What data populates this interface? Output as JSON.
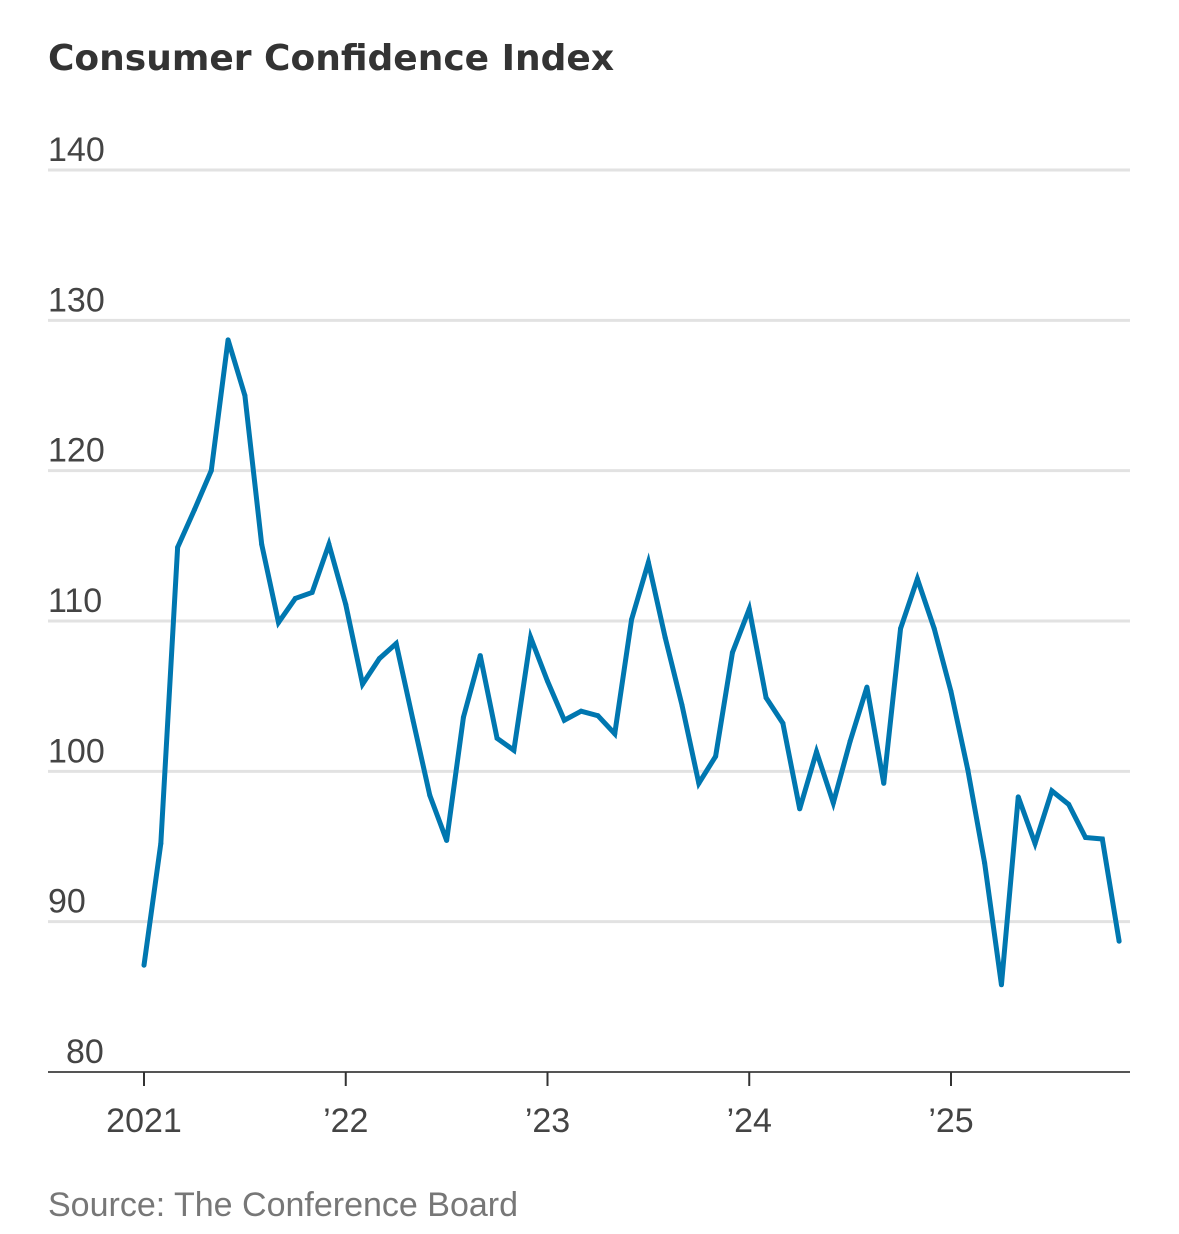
{
  "chart_data": {
    "type": "line",
    "title": "Consumer Confidence Index",
    "source": "Source: The Conference Board",
    "xlabel": "",
    "ylabel": "",
    "ylim": [
      80,
      140
    ],
    "yticks": [
      80,
      90,
      100,
      110,
      120,
      130,
      140
    ],
    "ytick_labels": [
      "80",
      "90",
      "100",
      "110",
      "120",
      "130",
      "140"
    ],
    "xticks": [
      {
        "label": "2021",
        "year": 2021
      },
      {
        "label": "’22",
        "year": 2022
      },
      {
        "label": "’23",
        "year": 2023
      },
      {
        "label": "’24",
        "year": 2024
      },
      {
        "label": "’25",
        "year": 2025
      }
    ],
    "grid": true,
    "color": "#0077b0",
    "series": [
      {
        "name": "Consumer Confidence Index",
        "start": "2021-01",
        "frequency": "monthly",
        "values": [
          87.1,
          95.2,
          114.9,
          117.4,
          120.0,
          128.7,
          125.0,
          115.1,
          109.9,
          111.5,
          111.9,
          115.1,
          111.1,
          105.8,
          107.5,
          108.5,
          103.4,
          98.4,
          95.4,
          103.6,
          107.7,
          102.2,
          101.4,
          108.9,
          106.0,
          103.4,
          104.0,
          103.7,
          102.5,
          110.1,
          113.9,
          108.9,
          104.4,
          99.2,
          101.0,
          107.9,
          110.8,
          104.9,
          103.2,
          97.5,
          101.3,
          97.9,
          102.0,
          105.6,
          99.2,
          109.5,
          112.8,
          109.5,
          105.3,
          100.1,
          93.9,
          85.8,
          98.3,
          95.2,
          98.7,
          97.8,
          95.6,
          95.5,
          88.7
        ]
      }
    ]
  }
}
